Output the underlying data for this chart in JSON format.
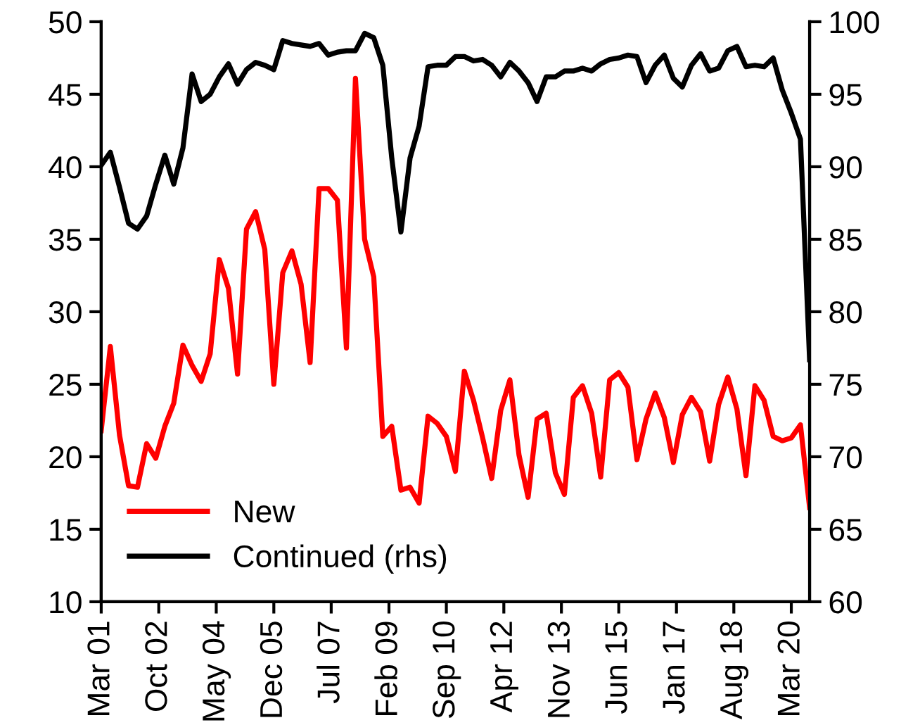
{
  "chart_data": {
    "type": "line",
    "x": [
      "2001-03",
      "2001-06",
      "2001-09",
      "2001-12",
      "2002-03",
      "2002-06",
      "2002-09",
      "2002-12",
      "2003-03",
      "2003-06",
      "2003-09",
      "2003-12",
      "2004-03",
      "2004-06",
      "2004-09",
      "2004-12",
      "2005-03",
      "2005-06",
      "2005-09",
      "2005-12",
      "2006-03",
      "2006-06",
      "2006-09",
      "2006-12",
      "2007-03",
      "2007-06",
      "2007-09",
      "2007-12",
      "2008-03",
      "2008-06",
      "2008-09",
      "2008-12",
      "2009-03",
      "2009-06",
      "2009-09",
      "2009-12",
      "2010-03",
      "2010-06",
      "2010-09",
      "2010-12",
      "2011-03",
      "2011-06",
      "2011-09",
      "2011-12",
      "2012-03",
      "2012-06",
      "2012-09",
      "2012-12",
      "2013-03",
      "2013-06",
      "2013-09",
      "2013-12",
      "2014-03",
      "2014-06",
      "2014-09",
      "2014-12",
      "2015-03",
      "2015-06",
      "2015-09",
      "2015-12",
      "2016-03",
      "2016-06",
      "2016-09",
      "2016-12",
      "2017-03",
      "2017-06",
      "2017-09",
      "2017-12",
      "2018-03",
      "2018-06",
      "2018-09",
      "2018-12",
      "2019-03",
      "2019-06",
      "2019-09",
      "2019-12",
      "2020-03",
      "2020-06",
      "2020-09"
    ],
    "series": [
      {
        "name": "New",
        "color": "#ff0000",
        "values": [
          21.8,
          27.6,
          21.5,
          18.0,
          17.9,
          20.9,
          19.9,
          22.1,
          23.7,
          27.7,
          26.3,
          25.2,
          27.1,
          33.6,
          31.6,
          25.7,
          35.7,
          36.9,
          34.3,
          25.0,
          32.7,
          34.2,
          31.9,
          26.5,
          38.5,
          38.5,
          37.7,
          27.5,
          46.1,
          35.0,
          32.4,
          21.4,
          22.1,
          17.7,
          17.9,
          16.8,
          22.8,
          22.3,
          21.4,
          19.0,
          25.9,
          23.9,
          21.3,
          18.5,
          23.2,
          25.3,
          20.1,
          17.2,
          22.6,
          23.0,
          18.9,
          17.4,
          24.1,
          24.9,
          23.0,
          18.6,
          25.3,
          25.8,
          24.8,
          19.8,
          22.6,
          24.4,
          22.7,
          19.6,
          22.9,
          24.1,
          23.1,
          19.7,
          23.6,
          25.5,
          23.3,
          18.7,
          24.9,
          23.9,
          21.4,
          21.1,
          21.3,
          22.2,
          16.5
        ]
      },
      {
        "name": "Continued (rhs)",
        "color": "#000000",
        "axis": "y2",
        "values": [
          90.1,
          91.0,
          88.6,
          86.1,
          85.7,
          86.6,
          88.8,
          90.8,
          88.8,
          91.3,
          96.4,
          94.5,
          95.0,
          96.2,
          97.1,
          95.7,
          96.7,
          97.2,
          97.0,
          96.7,
          98.7,
          98.5,
          98.4,
          98.3,
          98.5,
          97.7,
          97.9,
          98.0,
          98.0,
          99.2,
          98.9,
          97.0,
          90.6,
          85.5,
          90.6,
          92.8,
          96.9,
          97.0,
          97.0,
          97.6,
          97.6,
          97.3,
          97.4,
          97.0,
          96.2,
          97.2,
          96.6,
          95.8,
          94.5,
          96.2,
          96.2,
          96.6,
          96.6,
          96.8,
          96.6,
          97.1,
          97.4,
          97.5,
          97.7,
          97.6,
          95.8,
          97.0,
          97.7,
          96.1,
          95.5,
          97.0,
          97.8,
          96.6,
          96.8,
          98.0,
          98.3,
          96.9,
          97.0,
          96.9,
          97.5,
          95.3,
          93.7,
          91.9,
          76.7
        ]
      }
    ],
    "xlim": [
      "2001-03",
      "2020-09"
    ],
    "xticks": [
      {
        "value": "2001-03",
        "label": "Mar 01"
      },
      {
        "value": "2002-10",
        "label": "Oct 02"
      },
      {
        "value": "2004-05",
        "label": "May 04"
      },
      {
        "value": "2005-12",
        "label": "Dec 05"
      },
      {
        "value": "2007-07",
        "label": "Jul 07"
      },
      {
        "value": "2009-02",
        "label": "Feb 09"
      },
      {
        "value": "2010-09",
        "label": "Sep 10"
      },
      {
        "value": "2012-04",
        "label": "Apr 12"
      },
      {
        "value": "2013-11",
        "label": "Nov 13"
      },
      {
        "value": "2015-06",
        "label": "Jun 15"
      },
      {
        "value": "2017-01",
        "label": "Jan 17"
      },
      {
        "value": "2018-08",
        "label": "Aug 18"
      },
      {
        "value": "2020-03",
        "label": "Mar 20"
      }
    ],
    "ylim": [
      10,
      50
    ],
    "yticks": [
      10,
      15,
      20,
      25,
      30,
      35,
      40,
      45,
      50
    ],
    "y2lim": [
      60,
      100
    ],
    "y2ticks": [
      60,
      65,
      70,
      75,
      80,
      85,
      90,
      95,
      100
    ],
    "legend": "bottom left",
    "grid": false,
    "marker": "none",
    "line_style": "solid"
  }
}
